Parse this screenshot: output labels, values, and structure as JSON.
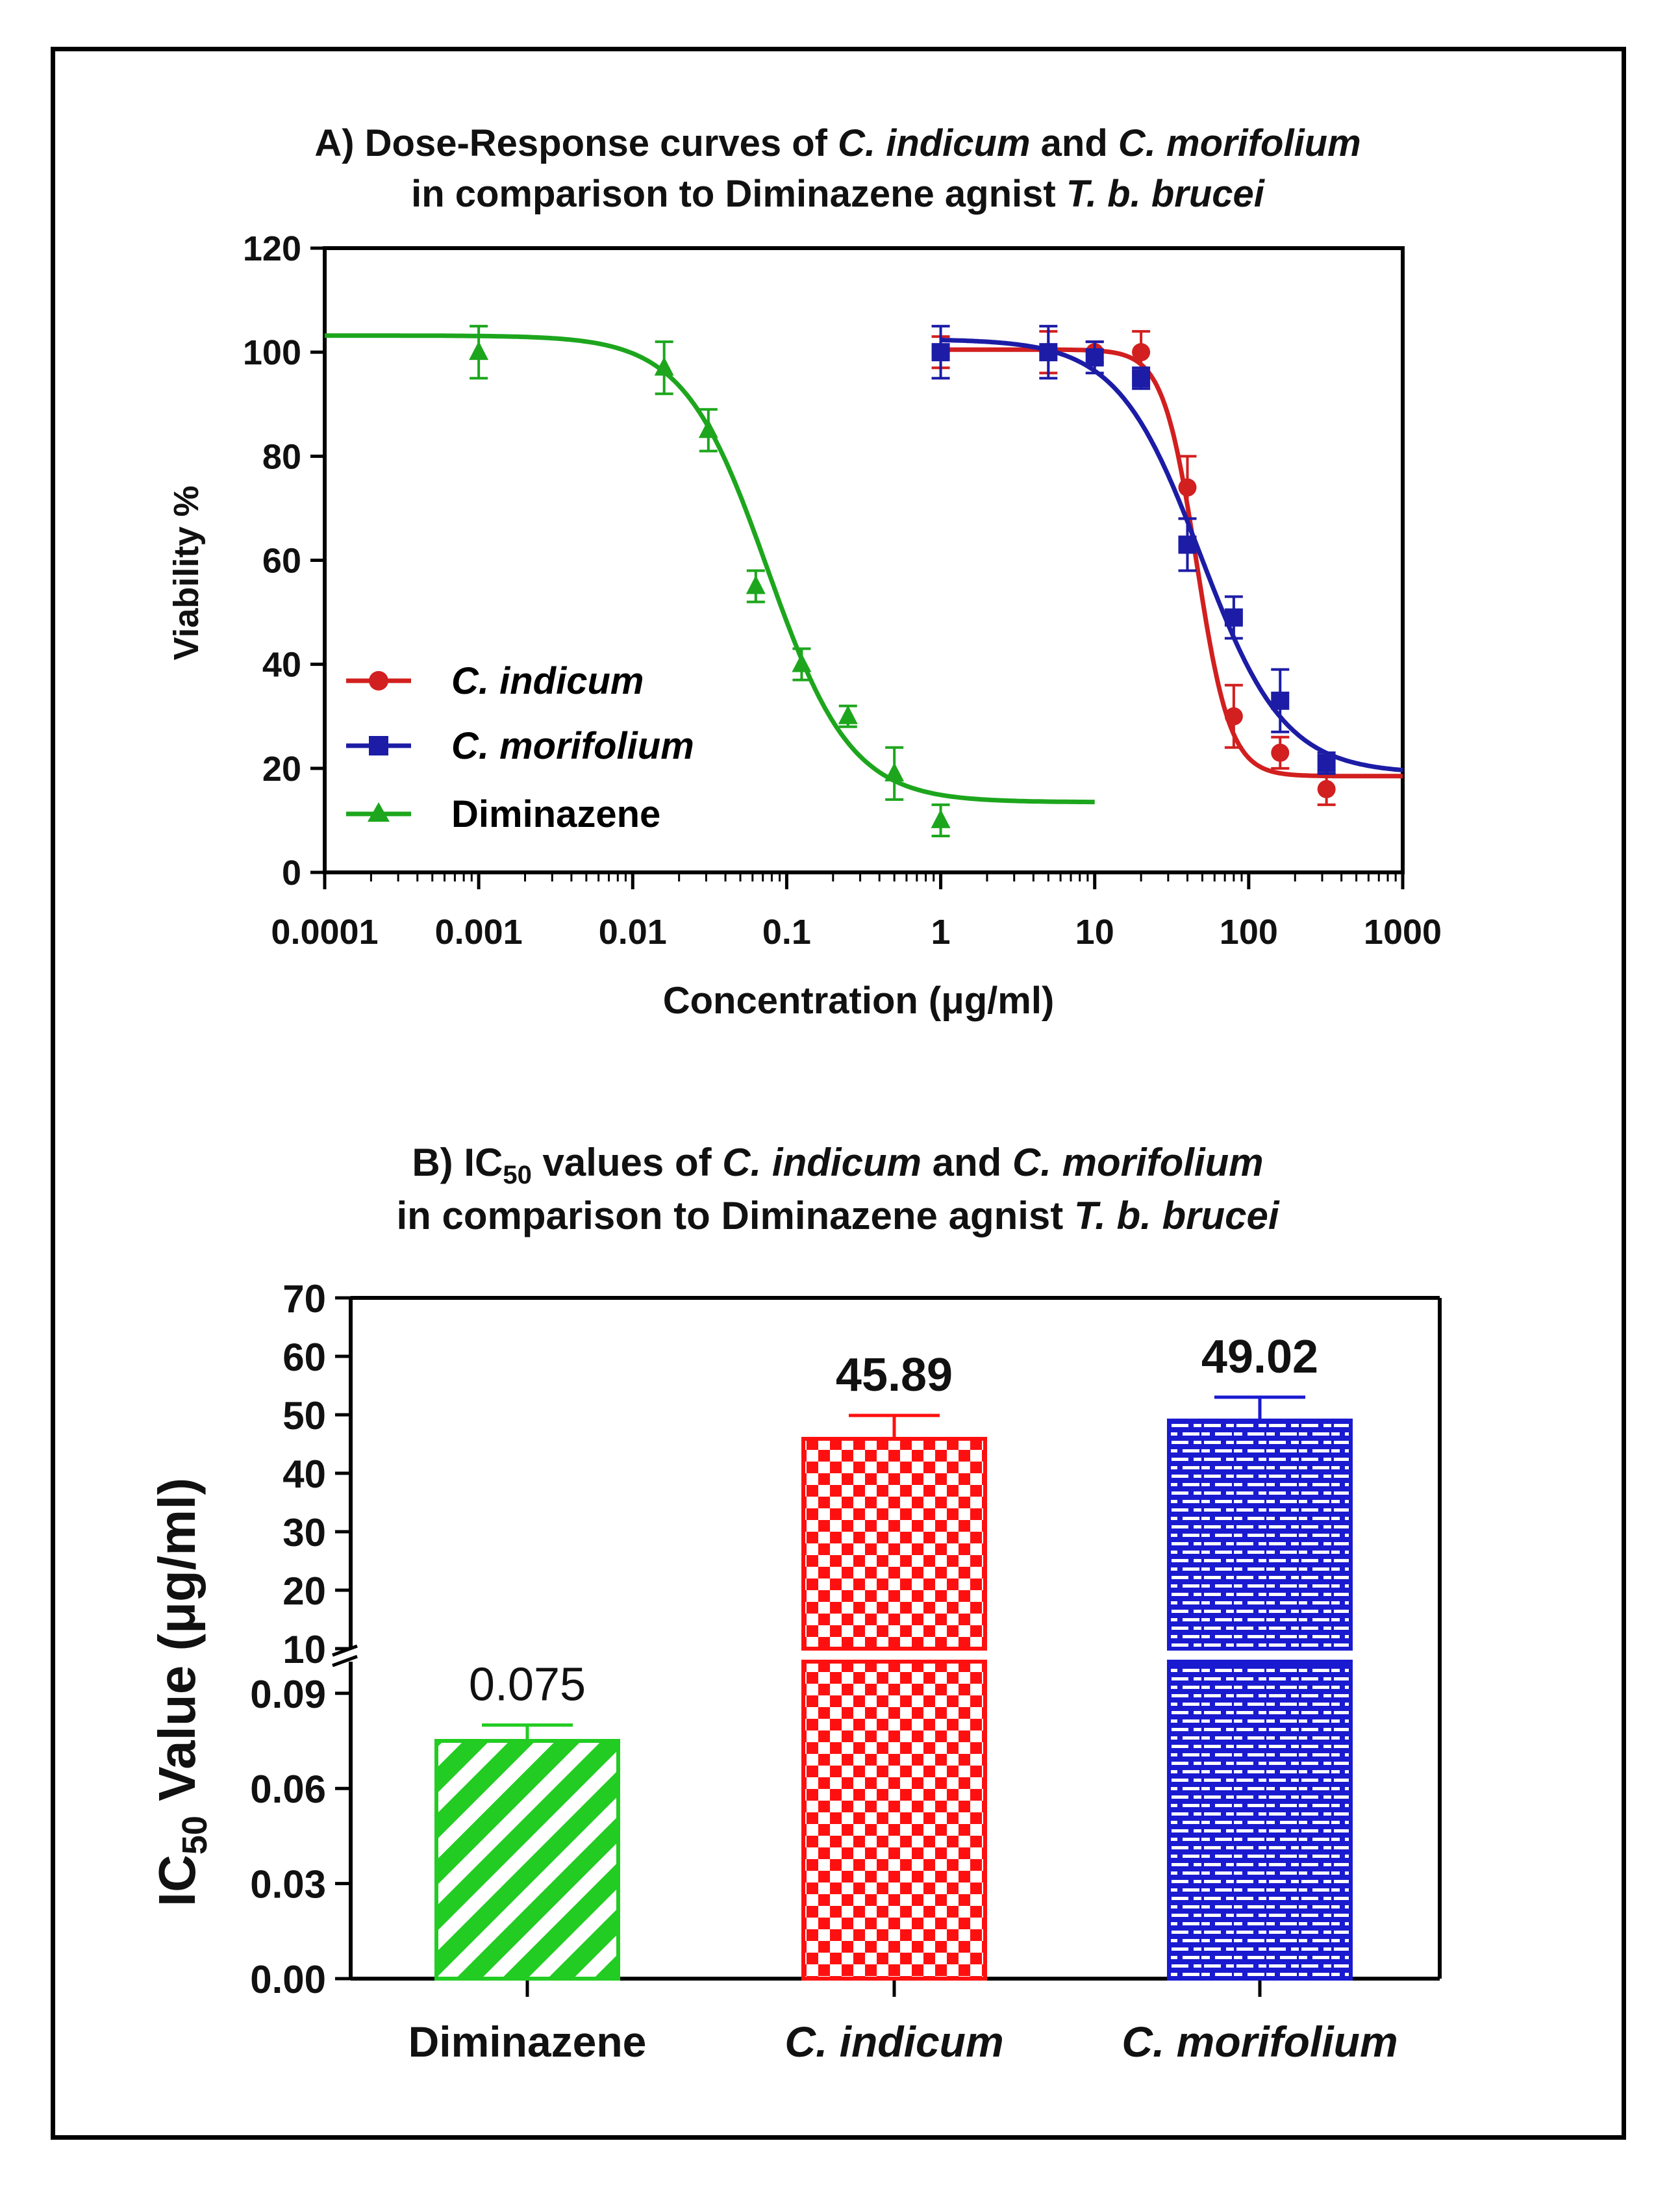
{
  "colors": {
    "red": "#d21f1f",
    "blue": "#1c1ca6",
    "green": "#1da61d",
    "bar_red": "#ff1010",
    "bar_blue": "#1a1ad0",
    "bar_green": "#22cc22",
    "axis": "#000000"
  },
  "chart_data": [
    {
      "type": "scatter",
      "title_line1": {
        "prefix": "A) Dose-Response curves of ",
        "sp1": "C. indicum",
        "mid": " and ",
        "sp2": "C. morifolium"
      },
      "title_line2": {
        "prefix": "in comparison to Diminazene agnist ",
        "sp": "T. b. brucei"
      },
      "xlabel": "Concentration (μg/ml)",
      "ylabel": "Viability %",
      "xscale": "log",
      "xlim": [
        0.0001,
        1000
      ],
      "ylim": [
        0,
        120
      ],
      "xticks": [
        "0.0001",
        "0.001",
        "0.01",
        "0.1",
        "1",
        "10",
        "100",
        "1000"
      ],
      "yticks": [
        "0",
        "20",
        "40",
        "60",
        "80",
        "100",
        "120"
      ],
      "legend_position": "lower-left",
      "series": [
        {
          "name": "C. indicum",
          "italic": true,
          "color": "red",
          "marker": "circle",
          "x": [
            1,
            5,
            10,
            20,
            40,
            80,
            160,
            320
          ],
          "y": [
            100,
            100,
            100,
            100,
            74,
            30,
            23,
            16
          ],
          "err": [
            3,
            4,
            2,
            4,
            6,
            6,
            3,
            3
          ],
          "fit": {
            "top": 100.5,
            "bottom": 18.5,
            "logEC50": 1.662,
            "hill": 4.0,
            "xmin": 1,
            "xmax": 1000
          }
        },
        {
          "name": "C. morifolium",
          "italic": true,
          "color": "blue",
          "marker": "square",
          "x": [
            1,
            5,
            10,
            20,
            40,
            80,
            160,
            320
          ],
          "y": [
            100,
            100,
            99,
            95,
            63,
            49,
            33,
            21
          ],
          "err": [
            5,
            5,
            3,
            2,
            5,
            4,
            6,
            2
          ],
          "fit": {
            "top": 102.5,
            "bottom": 19,
            "logEC50": 1.69,
            "hill": 1.6,
            "xmin": 1,
            "xmax": 1000
          }
        },
        {
          "name": "Diminazene",
          "italic": false,
          "color": "green",
          "marker": "triangle",
          "x": [
            0.001,
            0.016,
            0.031,
            0.063,
            0.125,
            0.25,
            0.5,
            1
          ],
          "y": [
            100,
            97,
            85,
            55,
            40,
            30,
            19,
            10
          ],
          "err": [
            5,
            5,
            4,
            3,
            3,
            2,
            5,
            3
          ],
          "fit": {
            "top": 103.2,
            "bottom": 13.5,
            "logEC50": -1.125,
            "hill": 1.6,
            "xmin": 0.0001,
            "xmax": 10
          }
        }
      ]
    },
    {
      "type": "bar",
      "title_line1": {
        "prefix": "B) IC",
        "sub": "50",
        "mid1": " values of ",
        "sp1": "C. indicum",
        "mid2": " and ",
        "sp2": "C. morifolium"
      },
      "title_line2": {
        "prefix": "in comparison to Diminazene agnist ",
        "sp": "T. b. brucei"
      },
      "ylabel": {
        "prefix": "IC",
        "sub": "50",
        "suffix": " Value (μg/ml)"
      },
      "ylim_lower": [
        0,
        0.1
      ],
      "ylim_upper": [
        10,
        70
      ],
      "yticks_lower": [
        "0.00",
        "0.03",
        "0.06",
        "0.09"
      ],
      "yticks_upper": [
        "10",
        "20",
        "30",
        "40",
        "50",
        "60",
        "70"
      ],
      "categories": [
        {
          "label": "Diminazene",
          "italic": false,
          "value": 0.075,
          "err": 0.005,
          "label_text": "0.075",
          "label_bold": false,
          "color": "bar_green",
          "pattern": "stripes"
        },
        {
          "label": "C. indicum",
          "italic": true,
          "value": 45.89,
          "err": 4,
          "label_text": "45.89",
          "label_bold": true,
          "color": "bar_red",
          "pattern": "checker"
        },
        {
          "label": "C. morifolium",
          "italic": true,
          "value": 49.02,
          "err": 4,
          "label_text": "49.02",
          "label_bold": true,
          "color": "bar_blue",
          "pattern": "brick"
        }
      ]
    }
  ]
}
